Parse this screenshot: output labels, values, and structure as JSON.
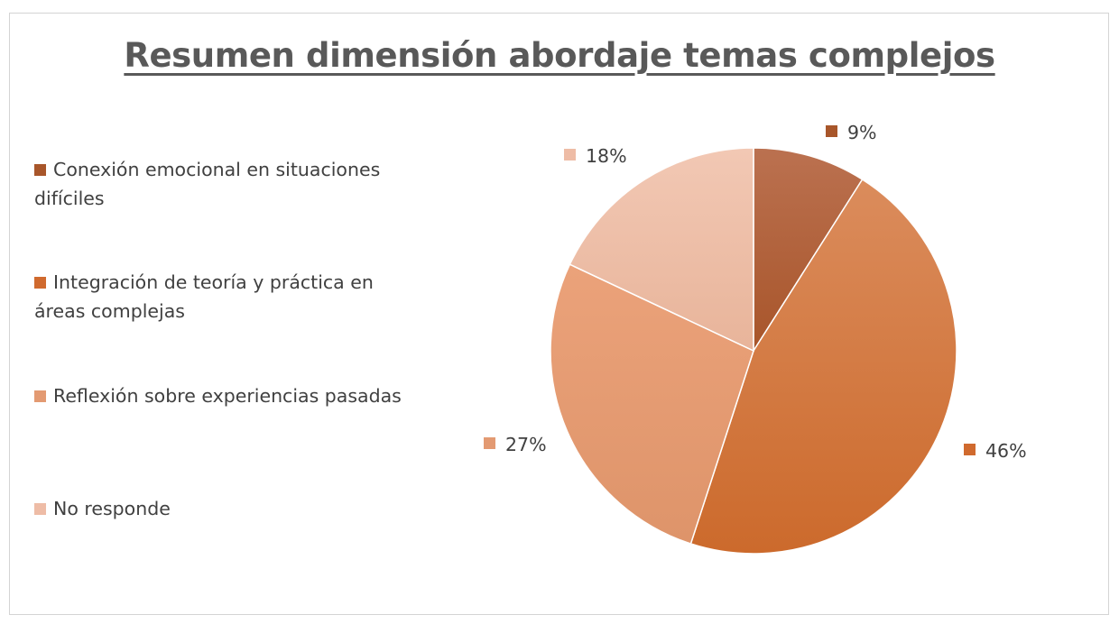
{
  "chart_data": {
    "type": "pie",
    "title": "Resumen dimensión abordaje temas complejos",
    "categories": [
      "Conexión emocional en situaciones difíciles",
      "Integración de teoría y práctica en áreas complejas",
      "Reflexión sobre experiencias pasadas",
      "No responde"
    ],
    "values": [
      9,
      46,
      27,
      18
    ],
    "value_labels": [
      "9%",
      "46%",
      "27%",
      "18%"
    ],
    "colors": [
      "#a8562a",
      "#d06a2e",
      "#e39a72",
      "#eebca6"
    ],
    "legend_position": "left"
  }
}
